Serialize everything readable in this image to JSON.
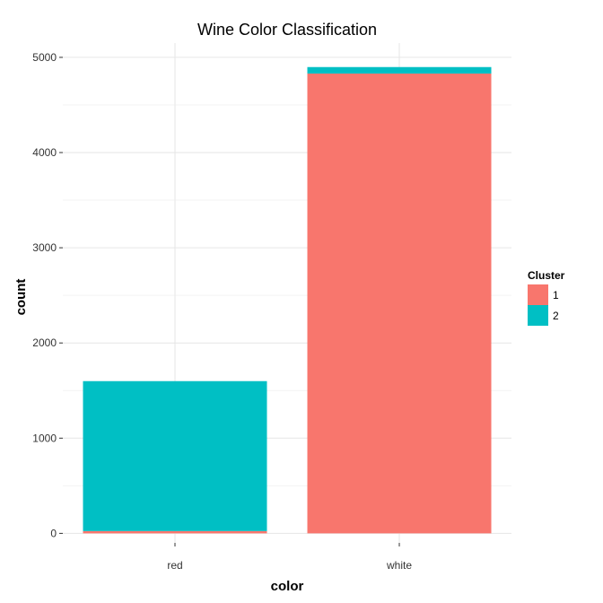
{
  "chart_data": {
    "type": "bar",
    "stacked": true,
    "title": "Wine Color Classification",
    "xlabel": "color",
    "ylabel": "count",
    "categories": [
      "red",
      "white"
    ],
    "series": [
      {
        "name": "1",
        "color": "#F8766D",
        "values": [
          24,
          4830
        ]
      },
      {
        "name": "2",
        "color": "#00BFC4",
        "values": [
          1575,
          68
        ]
      }
    ],
    "ylim": [
      -100,
      5150
    ],
    "yticks": [
      0,
      1000,
      2000,
      3000,
      4000,
      5000
    ],
    "legend": {
      "title": "Cluster",
      "placement": "right"
    },
    "grid": true
  }
}
